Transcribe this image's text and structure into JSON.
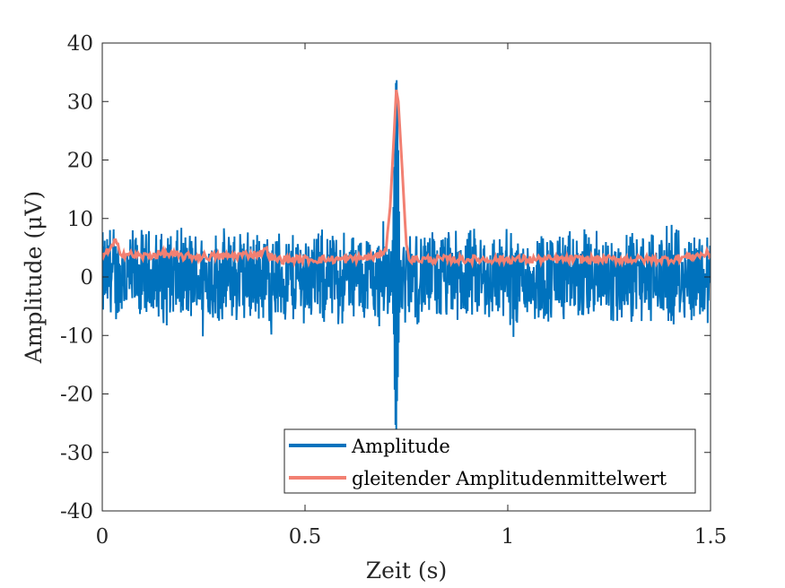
{
  "chart_data": {
    "type": "line",
    "xlabel": "Zeit (s)",
    "ylabel": "Amplitude (μV)",
    "xlim": [
      0,
      1.5
    ],
    "ylim": [
      -40,
      40
    ],
    "xticks": [
      0,
      0.5,
      1,
      1.5
    ],
    "xtick_labels": [
      "0",
      "0.5",
      "1",
      "1.5"
    ],
    "yticks": [
      40,
      30,
      20,
      10,
      0,
      -10,
      -20,
      -30,
      -40
    ],
    "ytick_labels": [
      "40",
      "30",
      "20",
      "10",
      "0",
      "-10",
      "-20",
      "-30",
      "-40"
    ],
    "grid": false,
    "legend_position": "bottom-right",
    "series": [
      {
        "name": "Amplitude",
        "color": "#0072BD",
        "kind": "noise-signal",
        "noise_amplitude_approx": 9,
        "spike": {
          "x": 0.725,
          "peak": 36,
          "trough": -26
        }
      },
      {
        "name": "gleitender Amplitudenmittelwert",
        "color": "#F28072",
        "x": [
          0,
          0.02,
          0.03,
          0.05,
          0.1,
          0.15,
          0.2,
          0.3,
          0.39,
          0.4,
          0.42,
          0.5,
          0.6,
          0.68,
          0.7,
          0.71,
          0.72,
          0.725,
          0.73,
          0.74,
          0.75,
          0.76,
          0.8,
          0.9,
          1.0,
          1.1,
          1.2,
          1.3,
          1.4,
          1.45,
          1.5
        ],
        "values": [
          4,
          4.5,
          6,
          4,
          3.5,
          4,
          3.5,
          3.5,
          4,
          5,
          3,
          3,
          3,
          3.5,
          5,
          12,
          25,
          32,
          30,
          18,
          5,
          3,
          3,
          3,
          3,
          3,
          3,
          3,
          3,
          3.5,
          4
        ]
      }
    ]
  }
}
